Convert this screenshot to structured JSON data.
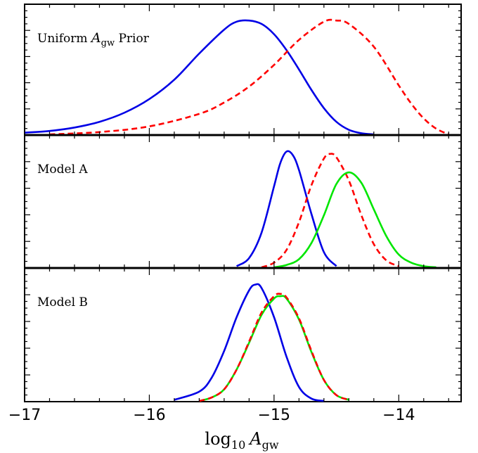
{
  "chart_data": {
    "type": "line",
    "xlabel": "log10 Agw",
    "xlabel_parts": {
      "base": "log",
      "base_sub": "10",
      "var": "A",
      "var_sub": "gw"
    },
    "xlim": [
      -17,
      -13.5
    ],
    "xticks": [
      -17,
      -16,
      -15,
      -14
    ],
    "xtick_labels": [
      "−17",
      "−16",
      "−15",
      "−14"
    ],
    "ylim": [
      0,
      1.1
    ],
    "grid": false,
    "colors": {
      "blue": "#0000e6",
      "red": "#ff0000",
      "green": "#00e600"
    },
    "panels": [
      {
        "id": "uniform",
        "label": "Uniform Agw Prior",
        "label_parts": {
          "pre": "Uniform ",
          "var": "A",
          "sub": "gw",
          "post": " Prior"
        },
        "series": [
          {
            "style": "solid",
            "color": "#0000e6",
            "x": [
              -17.0,
              -16.8,
              -16.6,
              -16.4,
              -16.2,
              -16.0,
              -15.8,
              -15.6,
              -15.4,
              -15.3,
              -15.2,
              -15.1,
              -15.0,
              -14.9,
              -14.8,
              -14.7,
              -14.6,
              -14.5,
              -14.4,
              -14.3,
              -14.2
            ],
            "y": [
              0.015,
              0.03,
              0.06,
              0.11,
              0.19,
              0.31,
              0.48,
              0.71,
              0.92,
              0.99,
              1.0,
              0.97,
              0.88,
              0.74,
              0.57,
              0.39,
              0.23,
              0.11,
              0.04,
              0.01,
              0.0
            ]
          },
          {
            "style": "dashed",
            "color": "#ff0000",
            "x": [
              -16.8,
              -16.4,
              -16.0,
              -15.6,
              -15.4,
              -15.2,
              -15.0,
              -14.8,
              -14.6,
              -14.5,
              -14.4,
              -14.2,
              -14.0,
              -13.9,
              -13.8,
              -13.7,
              -13.6
            ],
            "y": [
              0.0,
              0.02,
              0.07,
              0.18,
              0.28,
              0.42,
              0.61,
              0.83,
              0.99,
              1.0,
              0.97,
              0.77,
              0.43,
              0.27,
              0.14,
              0.05,
              0.0
            ]
          }
        ]
      },
      {
        "id": "model-a",
        "label": "Model A",
        "series": [
          {
            "style": "solid",
            "color": "#0000e6",
            "x": [
              -15.3,
              -15.2,
              -15.1,
              -15.0,
              -14.95,
              -14.9,
              -14.85,
              -14.8,
              -14.7,
              -14.6,
              -14.5
            ],
            "y": [
              0.01,
              0.08,
              0.3,
              0.7,
              0.9,
              1.0,
              0.97,
              0.84,
              0.46,
              0.13,
              0.01
            ]
          },
          {
            "style": "dashed",
            "color": "#ff0000",
            "x": [
              -15.1,
              -15.0,
              -14.9,
              -14.8,
              -14.7,
              -14.6,
              -14.55,
              -14.5,
              -14.4,
              -14.3,
              -14.2,
              -14.1,
              -14.0
            ],
            "y": [
              0.0,
              0.04,
              0.15,
              0.39,
              0.71,
              0.94,
              0.98,
              0.95,
              0.75,
              0.45,
              0.2,
              0.06,
              0.01
            ]
          },
          {
            "style": "solid",
            "color": "#00e600",
            "x": [
              -15.0,
              -14.9,
              -14.8,
              -14.7,
              -14.6,
              -14.5,
              -14.4,
              -14.3,
              -14.2,
              -14.1,
              -14.0,
              -13.9,
              -13.8,
              -13.7
            ],
            "y": [
              0.0,
              0.02,
              0.07,
              0.21,
              0.45,
              0.72,
              0.82,
              0.73,
              0.5,
              0.27,
              0.11,
              0.04,
              0.01,
              0.0
            ]
          }
        ]
      },
      {
        "id": "model-b",
        "label": "Model B",
        "series": [
          {
            "style": "solid",
            "color": "#0000e6",
            "x": [
              -15.8,
              -15.6,
              -15.5,
              -15.4,
              -15.3,
              -15.2,
              -15.15,
              -15.1,
              -15.0,
              -14.9,
              -14.8,
              -14.7,
              -14.6
            ],
            "y": [
              0.01,
              0.08,
              0.2,
              0.43,
              0.72,
              0.95,
              1.0,
              0.97,
              0.72,
              0.38,
              0.12,
              0.02,
              0.0
            ]
          },
          {
            "style": "solid",
            "color": "#00e600",
            "x": [
              -15.6,
              -15.5,
              -15.4,
              -15.3,
              -15.2,
              -15.1,
              -15.0,
              -14.95,
              -14.9,
              -14.8,
              -14.7,
              -14.6,
              -14.5,
              -14.4
            ],
            "y": [
              0.0,
              0.03,
              0.1,
              0.27,
              0.5,
              0.74,
              0.88,
              0.9,
              0.88,
              0.7,
              0.42,
              0.18,
              0.05,
              0.01
            ]
          },
          {
            "style": "dashed",
            "color": "#ff0000",
            "x": [
              -15.6,
              -15.5,
              -15.4,
              -15.3,
              -15.2,
              -15.1,
              -15.0,
              -14.95,
              -14.9,
              -14.8,
              -14.7,
              -14.6,
              -14.5,
              -14.4
            ],
            "y": [
              0.0,
              0.03,
              0.1,
              0.27,
              0.51,
              0.76,
              0.9,
              0.92,
              0.89,
              0.71,
              0.43,
              0.18,
              0.05,
              0.01
            ]
          }
        ]
      }
    ]
  }
}
